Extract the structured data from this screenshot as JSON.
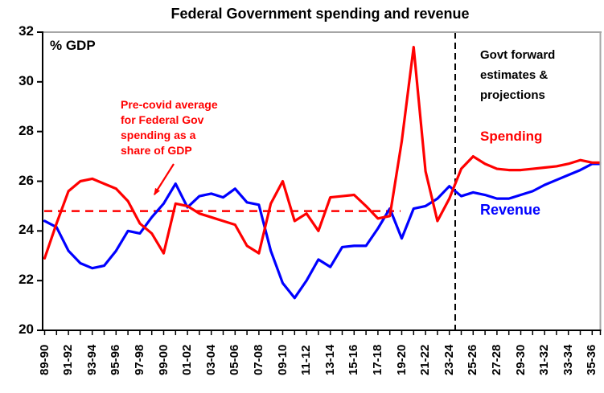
{
  "title": "Federal Government spending and revenue",
  "y_axis": {
    "unit_label": "% GDP",
    "min": 20,
    "max": 32,
    "tick_step": 2,
    "tick_labels": [
      "32",
      "30",
      "28",
      "26",
      "24",
      "22",
      "20"
    ]
  },
  "x_axis": {
    "label_every_nth_point": 2,
    "shown_tick_labels": [
      "89-90",
      "91-92",
      "93-94",
      "95-96",
      "97-98",
      "99-00",
      "01-02",
      "03-04",
      "05-06",
      "07-08",
      "09-10",
      "11-12",
      "13-14",
      "15-16",
      "17-18",
      "19-20",
      "21-22",
      "23-24",
      "25-26",
      "27-28",
      "29-30",
      "31-32",
      "33-34",
      "35-36"
    ]
  },
  "series_labels": {
    "spending": "Spending",
    "revenue": "Revenue"
  },
  "annotations": {
    "precovid_average": {
      "text": "Pre-covid average\nfor Federal Gov\nspending as a\nshare of GDP",
      "color": "#ff0000"
    },
    "forward_estimates": {
      "text": "Govt forward\nestimates &\nprojections",
      "color": "#000000"
    }
  },
  "chart_data": {
    "type": "line",
    "title": "Federal Government spending and revenue",
    "xlabel": "",
    "ylabel": "% GDP",
    "ylim": [
      20,
      32
    ],
    "grid": false,
    "legend_position": "inline-labels",
    "categories": [
      "89-90",
      "90-91",
      "91-92",
      "92-93",
      "93-94",
      "94-95",
      "95-96",
      "96-97",
      "97-98",
      "98-99",
      "99-00",
      "00-01",
      "01-02",
      "02-03",
      "03-04",
      "04-05",
      "05-06",
      "06-07",
      "07-08",
      "08-09",
      "09-10",
      "10-11",
      "11-12",
      "12-13",
      "13-14",
      "14-15",
      "15-16",
      "16-17",
      "17-18",
      "18-19",
      "19-20",
      "20-21",
      "21-22",
      "22-23",
      "23-24",
      "24-25",
      "25-26",
      "26-27",
      "27-28",
      "28-29",
      "29-30",
      "30-31",
      "31-32",
      "32-33",
      "33-34",
      "34-35",
      "35-36"
    ],
    "series": [
      {
        "name": "Spending",
        "color": "#ff0000",
        "values": [
          22.9,
          24.3,
          25.6,
          26.0,
          26.1,
          25.9,
          25.7,
          25.2,
          24.3,
          23.9,
          23.1,
          25.1,
          25.0,
          24.7,
          24.55,
          24.4,
          24.25,
          23.4,
          23.1,
          25.1,
          26.0,
          24.4,
          24.7,
          24.0,
          25.35,
          25.4,
          25.45,
          25.0,
          24.5,
          24.6,
          27.6,
          31.4,
          26.4,
          24.4,
          25.3,
          26.5,
          27.0,
          26.7,
          26.5,
          26.45,
          26.45,
          26.5,
          26.55,
          26.6,
          26.7,
          26.85,
          26.75
        ]
      },
      {
        "name": "Revenue",
        "color": "#0000ff",
        "values": [
          24.4,
          24.15,
          23.2,
          22.7,
          22.5,
          22.6,
          23.2,
          24.0,
          23.9,
          24.55,
          25.1,
          25.9,
          24.95,
          25.4,
          25.5,
          25.35,
          25.7,
          25.15,
          25.05,
          23.2,
          21.9,
          21.3,
          22.0,
          22.85,
          22.55,
          23.35,
          23.4,
          23.4,
          24.1,
          24.9,
          23.7,
          24.9,
          25.0,
          25.3,
          25.8,
          25.4,
          25.55,
          25.45,
          25.3,
          25.3,
          25.45,
          25.6,
          25.85,
          26.05,
          26.25,
          26.45,
          26.7
        ]
      }
    ],
    "avg_line": {
      "value": 24.8,
      "color": "#ff0000",
      "style": "dashed",
      "x_start_category": "89-90",
      "x_end_category": "19-20"
    },
    "divider_line": {
      "between": [
        "23-24",
        "24-25"
      ],
      "color": "#000000",
      "style": "dashed"
    }
  }
}
